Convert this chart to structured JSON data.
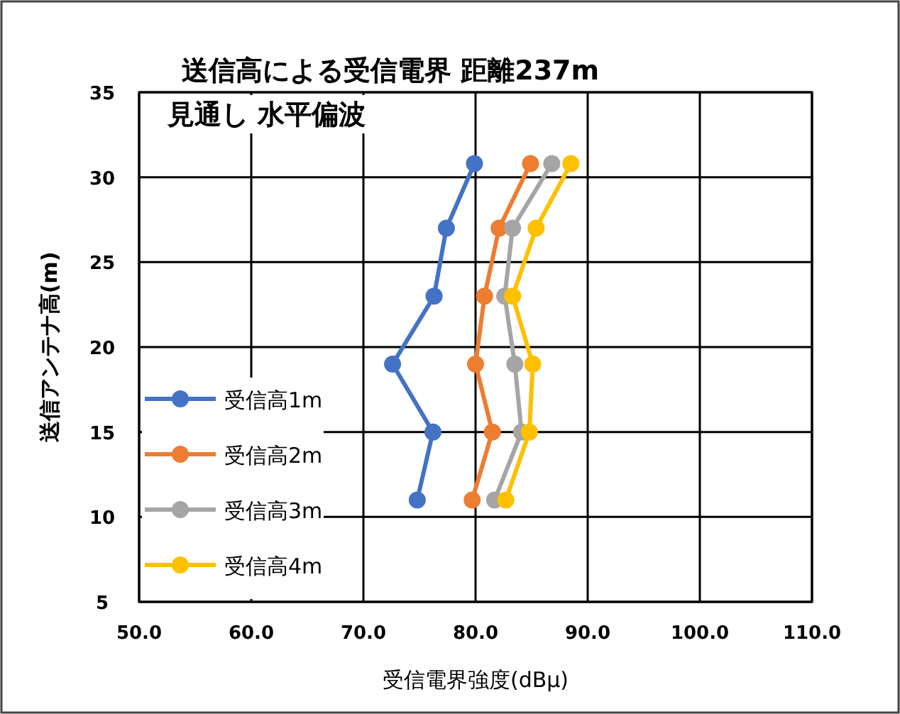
{
  "chart_data": {
    "type": "line",
    "title": "送信高による受信電界 距離237m",
    "subtitle": "見通し 水平偏波",
    "xlabel": "受信電界強度(dBμ)",
    "ylabel": "送信アンテナ高(m)",
    "xlim": [
      50,
      110
    ],
    "xticks": [
      {
        "value": 50,
        "label": "50.0"
      },
      {
        "value": 60,
        "label": "60.0"
      },
      {
        "value": 70,
        "label": "70.0"
      },
      {
        "value": 80,
        "label": "80.0"
      },
      {
        "value": 90,
        "label": "90.0"
      },
      {
        "value": 100,
        "label": "100.0"
      },
      {
        "value": 110,
        "label": "110.0"
      }
    ],
    "ylim": [
      5,
      35
    ],
    "yticks": [
      5,
      10,
      15,
      20,
      25,
      30,
      35
    ],
    "grid": true,
    "legend": "left",
    "marker": "circle",
    "line_style": "solid",
    "series": [
      {
        "name": "受信高1m",
        "color": "#4472c4",
        "x": [
          79.9,
          77.4,
          76.3,
          72.6,
          76.2,
          74.8
        ],
        "values": [
          30.8,
          27,
          23,
          19,
          15,
          11
        ]
      },
      {
        "name": "受信高2m",
        "color": "#ed7d31",
        "x": [
          84.9,
          82.1,
          80.8,
          80.0,
          81.5,
          79.7
        ],
        "values": [
          30.8,
          27,
          23,
          19,
          15,
          11
        ]
      },
      {
        "name": "受信高3m",
        "color": "#a5a5a5",
        "x": [
          86.8,
          83.3,
          82.6,
          83.5,
          84.1,
          81.7
        ],
        "values": [
          30.8,
          27,
          23,
          19,
          15,
          11
        ]
      },
      {
        "name": "受信高4m",
        "color": "#ffc000",
        "x": [
          88.5,
          85.4,
          83.3,
          85.1,
          84.8,
          82.7
        ],
        "values": [
          30.8,
          27,
          23,
          19,
          15,
          11
        ]
      }
    ]
  }
}
